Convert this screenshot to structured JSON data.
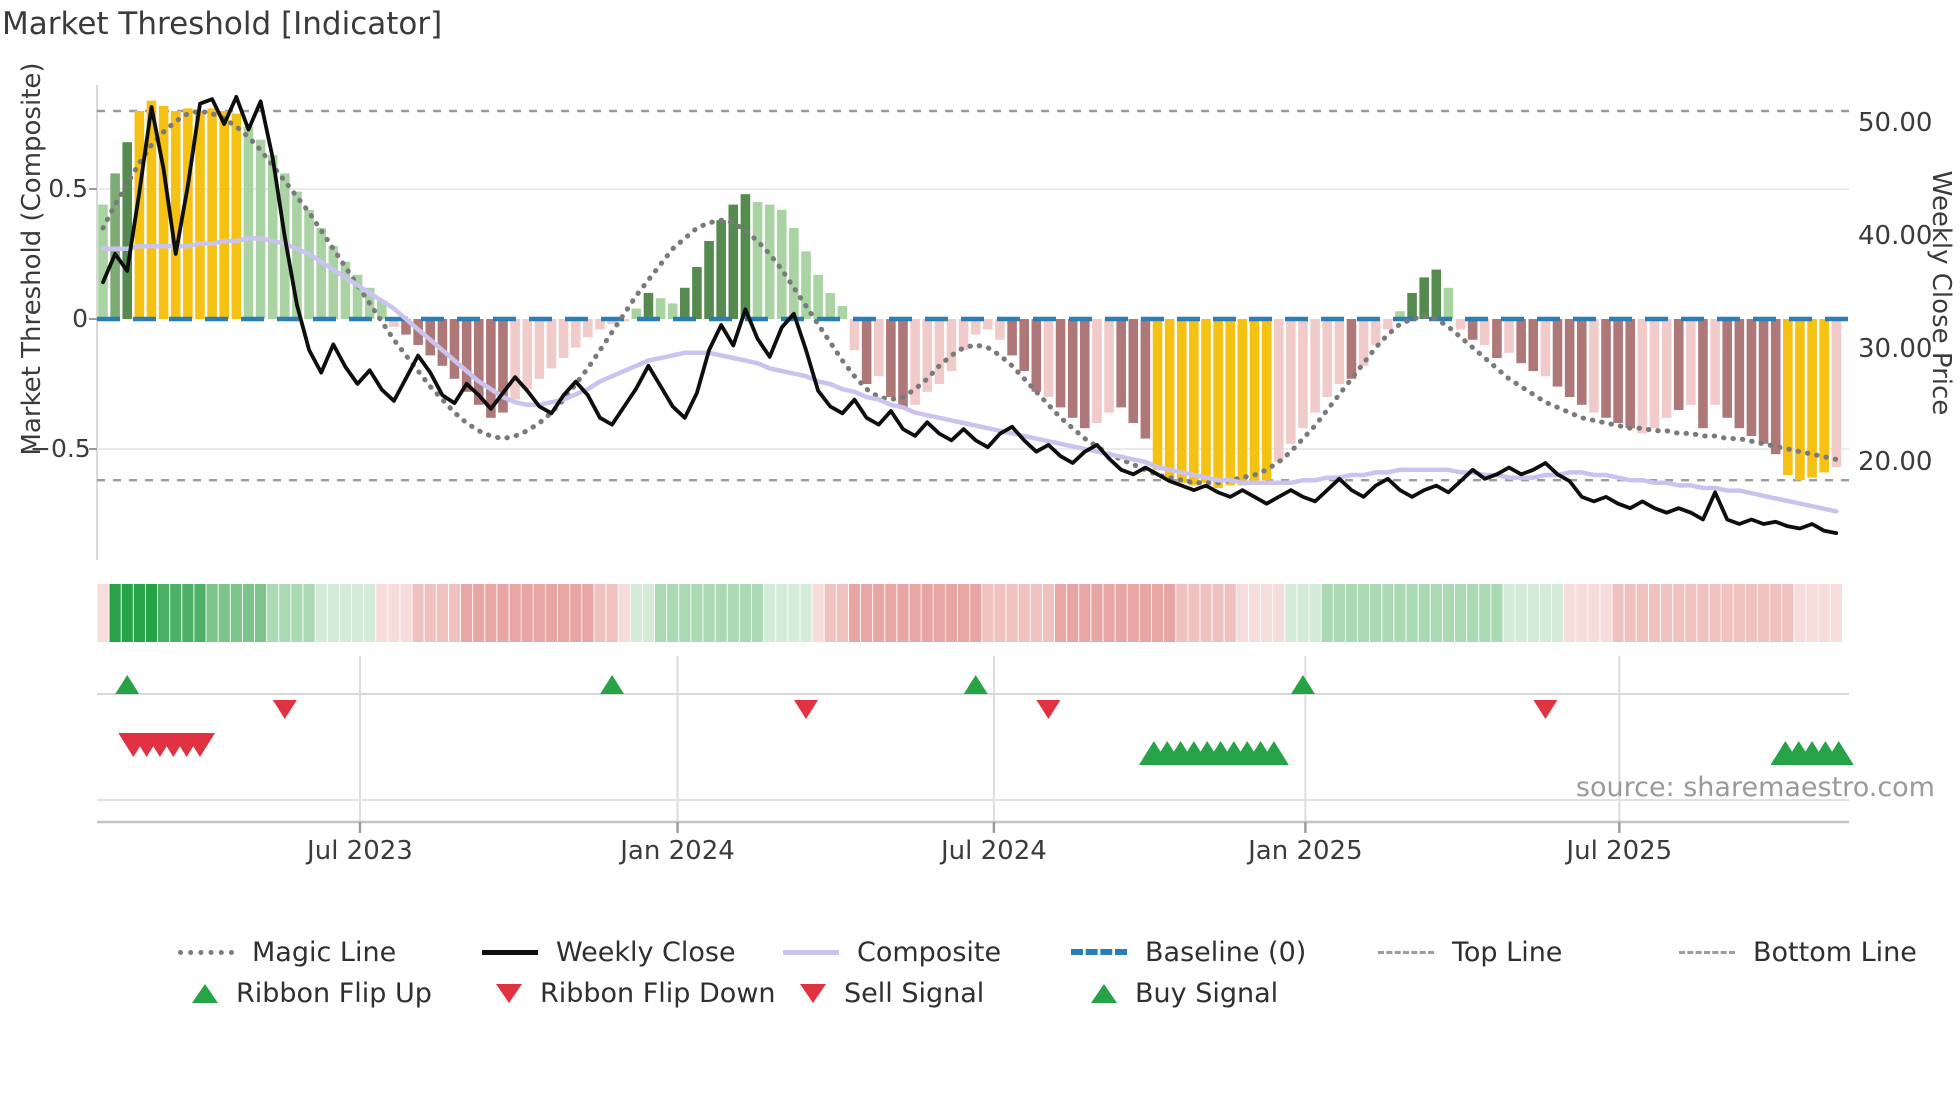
{
  "title": "Market Threshold [Indicator]",
  "source": "source: sharemaestro.com",
  "axes": {
    "left_label": "Market Threshold (Composite)",
    "right_label": "Weekly Close Price",
    "y_left": [
      {
        "label": "0.5",
        "value": 0.5
      },
      {
        "label": "0",
        "value": 0
      },
      {
        "label": "−0.5",
        "value": -0.5
      }
    ],
    "y_right": [
      {
        "label": "50.00",
        "value": 50
      },
      {
        "label": "40.00",
        "value": 40
      },
      {
        "label": "30.00",
        "value": 30
      },
      {
        "label": "20.00",
        "value": 20
      }
    ],
    "x_ticks": [
      {
        "label": "Jul 2023",
        "i": 21.2
      },
      {
        "label": "Jan 2024",
        "i": 47.4
      },
      {
        "label": "Jul 2024",
        "i": 73.5
      },
      {
        "label": "Jan 2025",
        "i": 99.2
      },
      {
        "label": "Jul 2025",
        "i": 125.1
      }
    ]
  },
  "legend": {
    "row1": [
      {
        "label": "Magic Line",
        "swatch": "dotted-gray-line"
      },
      {
        "label": "Weekly Close",
        "swatch": "solid-black-line"
      },
      {
        "label": "Composite",
        "swatch": "solid-lavender-line"
      },
      {
        "label": "Baseline (0)",
        "swatch": "dashed-blue-line"
      },
      {
        "label": "Top Line",
        "swatch": "dashed-gray-line"
      },
      {
        "label": "Bottom Line",
        "swatch": "dashed-gray-line"
      }
    ],
    "row2": [
      {
        "label": "Ribbon Flip Up",
        "swatch": "green-up-triangle"
      },
      {
        "label": "Ribbon Flip Down",
        "swatch": "red-down-triangle"
      },
      {
        "label": "Sell Signal",
        "swatch": "red-down-triangle"
      },
      {
        "label": "Buy Signal",
        "swatch": "green-up-triangle"
      }
    ]
  },
  "colors": {
    "gold_bar": "#f5c113",
    "dark_green_bar": "#558b4e",
    "mid_green_bar": "#7cab74",
    "light_green_bar": "#a9d3a3",
    "light_pink_bar": "#f1cbca",
    "dark_pink_bar": "#ae7878",
    "baseline": "#2a7db5",
    "magic_line": "#7a7a7a",
    "composite_line": "#cbc3ef",
    "weekly_close_line": "#0e0e0e",
    "top_bottom_line": "#9b9b9b",
    "buy_triangle": "#27a347",
    "sell_triangle": "#e13241",
    "ribbon_g5": "#27a347",
    "ribbon_g4": "#4cb166",
    "ribbon_g3": "#7cc48b",
    "ribbon_g2": "#abd9b3",
    "ribbon_g1": "#d4ecd7",
    "ribbon_p1": "#f6dcdb",
    "ribbon_p2": "#efc2c0",
    "ribbon_p3": "#e7a6a4"
  },
  "chart_data": {
    "type": "bar",
    "x_unit": "weekly (Feb 2023 - Nov 2025)",
    "title": "Market Threshold [Indicator]",
    "xlabel": "",
    "ylabel_left": "Market Threshold (Composite)",
    "ylabel_right": "Weekly Close Price",
    "ylim_left": [
      -0.9,
      0.92
    ],
    "ylim_right": [
      12,
      53
    ],
    "baseline": 0,
    "top_line": 0.8,
    "bottom_line": -0.62,
    "legend_position": "bottom",
    "grid": "horizontal at 0.5 and -0.5",
    "bars": {
      "values": [
        0.44,
        0.56,
        0.68,
        0.8,
        0.84,
        0.82,
        0.8,
        0.81,
        0.8,
        0.81,
        0.8,
        0.79,
        0.74,
        0.69,
        0.63,
        0.56,
        0.49,
        0.42,
        0.35,
        0.28,
        0.22,
        0.17,
        0.12,
        0.07,
        -0.03,
        -0.06,
        -0.1,
        -0.14,
        -0.18,
        -0.23,
        -0.28,
        -0.33,
        -0.38,
        -0.36,
        -0.31,
        -0.27,
        -0.23,
        -0.19,
        -0.15,
        -0.11,
        -0.07,
        -0.04,
        -0.02,
        -0.01,
        0.04,
        0.1,
        0.08,
        0.06,
        0.12,
        0.2,
        0.3,
        0.38,
        0.44,
        0.48,
        0.45,
        0.44,
        0.42,
        0.35,
        0.26,
        0.17,
        0.1,
        0.05,
        -0.12,
        -0.25,
        -0.22,
        -0.3,
        -0.34,
        -0.33,
        -0.28,
        -0.25,
        -0.2,
        -0.12,
        -0.06,
        -0.04,
        -0.08,
        -0.14,
        -0.2,
        -0.28,
        -0.3,
        -0.34,
        -0.38,
        -0.42,
        -0.4,
        -0.36,
        -0.34,
        -0.4,
        -0.46,
        -0.58,
        -0.61,
        -0.63,
        -0.64,
        -0.63,
        -0.65,
        -0.64,
        -0.64,
        -0.63,
        -0.62,
        -0.55,
        -0.48,
        -0.42,
        -0.36,
        -0.3,
        -0.25,
        -0.23,
        -0.18,
        -0.1,
        -0.04,
        0.03,
        0.1,
        0.16,
        0.19,
        0.12,
        -0.04,
        -0.08,
        -0.1,
        -0.15,
        -0.13,
        -0.17,
        -0.2,
        -0.22,
        -0.26,
        -0.3,
        -0.33,
        -0.36,
        -0.38,
        -0.4,
        -0.42,
        -0.44,
        -0.42,
        -0.38,
        -0.35,
        -0.33,
        -0.42,
        -0.33,
        -0.38,
        -0.42,
        -0.45,
        -0.48,
        -0.52,
        -0.6,
        -0.62,
        -0.61,
        -0.59,
        -0.57
      ],
      "colors": [
        "lg",
        "mg",
        "dg",
        "y",
        "y",
        "y",
        "y",
        "y",
        "y",
        "y",
        "y",
        "y",
        "lg",
        "lg",
        "lg",
        "lg",
        "lg",
        "lg",
        "lg",
        "lg",
        "lg",
        "lg",
        "lg",
        "lg",
        "lp",
        "dp",
        "dp",
        "dp",
        "dp",
        "dp",
        "dp",
        "dp",
        "dp",
        "dp",
        "lp",
        "lp",
        "lp",
        "lp",
        "lp",
        "lp",
        "lp",
        "lp",
        "lp",
        "lp",
        "lg",
        "dg",
        "lg",
        "lg",
        "dg",
        "dg",
        "dg",
        "dg",
        "dg",
        "dg",
        "lg",
        "lg",
        "lg",
        "lg",
        "lg",
        "lg",
        "lg",
        "lg",
        "lp",
        "dp",
        "lp",
        "dp",
        "dp",
        "lp",
        "lp",
        "lp",
        "lp",
        "lp",
        "lp",
        "lp",
        "lp",
        "dp",
        "dp",
        "dp",
        "lp",
        "dp",
        "dp",
        "dp",
        "lp",
        "lp",
        "dp",
        "dp",
        "dp",
        "y",
        "y",
        "y",
        "y",
        "y",
        "y",
        "y",
        "y",
        "y",
        "y",
        "lp",
        "lp",
        "lp",
        "lp",
        "lp",
        "lp",
        "dp",
        "lp",
        "lp",
        "lp",
        "lg",
        "dg",
        "dg",
        "dg",
        "lg",
        "lp",
        "dp",
        "lp",
        "dp",
        "lp",
        "dp",
        "dp",
        "lp",
        "dp",
        "dp",
        "dp",
        "lp",
        "dp",
        "dp",
        "dp",
        "lp",
        "lp",
        "lp",
        "dp",
        "lp",
        "dp",
        "lp",
        "dp",
        "dp",
        "dp",
        "dp",
        "dp",
        "y",
        "y",
        "y",
        "y",
        "lp"
      ]
    },
    "series": [
      {
        "name": "Weekly Close",
        "axis": "right",
        "values": [
          36.0,
          38.5,
          37.0,
          44.0,
          51.5,
          46.0,
          38.5,
          44.5,
          51.8,
          52.2,
          50.0,
          52.4,
          49.5,
          52.0,
          47.0,
          40.0,
          34.0,
          30.0,
          28.0,
          30.5,
          28.5,
          27.0,
          28.2,
          26.5,
          25.5,
          27.5,
          29.5,
          28.0,
          26.0,
          25.3,
          27.0,
          26.0,
          24.8,
          26.2,
          27.6,
          26.4,
          25.0,
          24.4,
          26.0,
          27.2,
          26.0,
          24.0,
          23.4,
          25.0,
          26.6,
          28.6,
          26.8,
          25.0,
          24.0,
          26.2,
          30.0,
          32.2,
          30.4,
          33.6,
          31.0,
          29.4,
          32.0,
          33.2,
          30.0,
          26.4,
          25.0,
          24.4,
          25.6,
          24.0,
          23.4,
          24.6,
          23.0,
          22.4,
          23.6,
          22.6,
          22.0,
          23.0,
          22.0,
          21.4,
          22.6,
          23.2,
          22.0,
          21.0,
          21.6,
          20.6,
          20.0,
          21.0,
          21.6,
          20.4,
          19.4,
          19.0,
          19.6,
          19.0,
          18.4,
          18.0,
          17.6,
          18.0,
          17.4,
          17.0,
          17.6,
          17.0,
          16.4,
          17.0,
          17.6,
          17.0,
          16.6,
          17.6,
          18.6,
          17.6,
          17.0,
          18.0,
          18.6,
          17.6,
          17.0,
          17.6,
          18.0,
          17.4,
          18.4,
          19.4,
          18.6,
          19.0,
          19.6,
          19.0,
          19.4,
          20.0,
          19.0,
          18.4,
          17.0,
          16.6,
          17.0,
          16.4,
          16.0,
          16.6,
          16.0,
          15.6,
          16.0,
          15.6,
          15.0,
          17.4,
          15.0,
          14.6,
          15.0,
          14.6,
          14.8,
          14.4,
          14.2,
          14.6,
          14.0,
          13.8
        ]
      },
      {
        "name": "Magic Line",
        "axis": "left",
        "values": [
          0.35,
          0.44,
          0.52,
          0.6,
          0.67,
          0.72,
          0.76,
          0.79,
          0.8,
          0.79,
          0.77,
          0.74,
          0.7,
          0.65,
          0.59,
          0.53,
          0.47,
          0.41,
          0.34,
          0.27,
          0.2,
          0.13,
          0.06,
          -0.01,
          -0.08,
          -0.14,
          -0.2,
          -0.26,
          -0.31,
          -0.36,
          -0.4,
          -0.43,
          -0.45,
          -0.46,
          -0.45,
          -0.43,
          -0.4,
          -0.36,
          -0.31,
          -0.25,
          -0.19,
          -0.12,
          -0.05,
          0.02,
          0.09,
          0.15,
          0.21,
          0.27,
          0.31,
          0.35,
          0.37,
          0.38,
          0.37,
          0.34,
          0.3,
          0.25,
          0.19,
          0.12,
          0.05,
          -0.02,
          -0.09,
          -0.16,
          -0.22,
          -0.27,
          -0.3,
          -0.31,
          -0.3,
          -0.27,
          -0.23,
          -0.18,
          -0.14,
          -0.11,
          -0.1,
          -0.11,
          -0.14,
          -0.18,
          -0.23,
          -0.28,
          -0.33,
          -0.38,
          -0.42,
          -0.46,
          -0.49,
          -0.52,
          -0.54,
          -0.56,
          -0.58,
          -0.6,
          -0.61,
          -0.62,
          -0.63,
          -0.63,
          -0.63,
          -0.62,
          -0.61,
          -0.6,
          -0.58,
          -0.55,
          -0.51,
          -0.46,
          -0.41,
          -0.35,
          -0.29,
          -0.23,
          -0.17,
          -0.11,
          -0.06,
          -0.02,
          0.0,
          0.01,
          0.0,
          -0.03,
          -0.07,
          -0.11,
          -0.15,
          -0.19,
          -0.23,
          -0.26,
          -0.29,
          -0.32,
          -0.34,
          -0.36,
          -0.38,
          -0.39,
          -0.4,
          -0.41,
          -0.42,
          -0.42,
          -0.43,
          -0.43,
          -0.44,
          -0.44,
          -0.45,
          -0.45,
          -0.46,
          -0.46,
          -0.47,
          -0.48,
          -0.49,
          -0.5,
          -0.51,
          -0.52,
          -0.53,
          -0.54
        ]
      },
      {
        "name": "Composite",
        "axis": "left",
        "values": [
          0.27,
          0.27,
          0.27,
          0.28,
          0.28,
          0.28,
          0.28,
          0.28,
          0.29,
          0.29,
          0.3,
          0.3,
          0.31,
          0.31,
          0.3,
          0.29,
          0.27,
          0.25,
          0.22,
          0.19,
          0.16,
          0.13,
          0.1,
          0.07,
          0.04,
          0.0,
          -0.04,
          -0.08,
          -0.12,
          -0.16,
          -0.2,
          -0.24,
          -0.27,
          -0.3,
          -0.32,
          -0.33,
          -0.33,
          -0.32,
          -0.31,
          -0.29,
          -0.27,
          -0.24,
          -0.22,
          -0.2,
          -0.18,
          -0.16,
          -0.15,
          -0.14,
          -0.13,
          -0.13,
          -0.13,
          -0.14,
          -0.15,
          -0.16,
          -0.17,
          -0.19,
          -0.2,
          -0.21,
          -0.22,
          -0.24,
          -0.25,
          -0.27,
          -0.28,
          -0.3,
          -0.31,
          -0.33,
          -0.34,
          -0.36,
          -0.37,
          -0.38,
          -0.39,
          -0.4,
          -0.41,
          -0.42,
          -0.43,
          -0.44,
          -0.45,
          -0.46,
          -0.47,
          -0.48,
          -0.49,
          -0.5,
          -0.51,
          -0.52,
          -0.53,
          -0.54,
          -0.55,
          -0.57,
          -0.58,
          -0.59,
          -0.6,
          -0.61,
          -0.62,
          -0.62,
          -0.63,
          -0.63,
          -0.63,
          -0.63,
          -0.63,
          -0.62,
          -0.62,
          -0.61,
          -0.61,
          -0.6,
          -0.6,
          -0.59,
          -0.59,
          -0.58,
          -0.58,
          -0.58,
          -0.58,
          -0.58,
          -0.59,
          -0.59,
          -0.6,
          -0.6,
          -0.61,
          -0.61,
          -0.61,
          -0.6,
          -0.6,
          -0.59,
          -0.59,
          -0.6,
          -0.6,
          -0.61,
          -0.62,
          -0.62,
          -0.63,
          -0.63,
          -0.64,
          -0.64,
          -0.65,
          -0.65,
          -0.66,
          -0.66,
          -0.67,
          -0.68,
          -0.69,
          -0.7,
          -0.71,
          -0.72,
          -0.73,
          -0.74
        ]
      }
    ],
    "ribbon": [
      "p1",
      "g5",
      "g5",
      "g5",
      "g5",
      "g4",
      "g4",
      "g4",
      "g4",
      "g3",
      "g3",
      "g3",
      "g3",
      "g3",
      "g2",
      "g2",
      "g2",
      "g2",
      "g1",
      "g1",
      "g1",
      "g1",
      "g1",
      "p1",
      "p1",
      "p1",
      "p2",
      "p2",
      "p2",
      "p2",
      "p3",
      "p3",
      "p3",
      "p3",
      "p3",
      "p3",
      "p3",
      "p3",
      "p3",
      "p3",
      "p3",
      "p2",
      "p2",
      "p1",
      "g1",
      "g1",
      "g2",
      "g2",
      "g2",
      "g2",
      "g2",
      "g2",
      "g2",
      "g2",
      "g2",
      "g1",
      "g1",
      "g1",
      "g1",
      "p1",
      "p2",
      "p2",
      "p3",
      "p3",
      "p3",
      "p3",
      "p3",
      "p3",
      "p3",
      "p3",
      "p3",
      "p3",
      "p3",
      "p2",
      "p2",
      "p2",
      "p2",
      "p2",
      "p2",
      "p3",
      "p3",
      "p3",
      "p3",
      "p3",
      "p3",
      "p3",
      "p3",
      "p3",
      "p3",
      "p2",
      "p2",
      "p2",
      "p2",
      "p2",
      "p1",
      "p1",
      "p1",
      "p1",
      "g1",
      "g1",
      "g1",
      "g2",
      "g2",
      "g2",
      "g2",
      "g2",
      "g2",
      "g2",
      "g2",
      "g2",
      "g2",
      "g2",
      "g2",
      "g2",
      "g2",
      "g2",
      "g1",
      "g1",
      "g1",
      "g1",
      "g1",
      "p1",
      "p1",
      "p1",
      "p1",
      "p2",
      "p2",
      "p2",
      "p2",
      "p2",
      "p2",
      "p2",
      "p2",
      "p2",
      "p2",
      "p2",
      "p2",
      "p2",
      "p2",
      "p2",
      "p1",
      "p1",
      "p1",
      "p1"
    ],
    "signals": {
      "ribbon_flip_up_i": [
        2,
        42,
        72,
        99
      ],
      "ribbon_flip_down_i": [
        15,
        58,
        78,
        119
      ],
      "sell_i": [
        2.5,
        3.6,
        4.7,
        5.8,
        6.9,
        8.0
      ],
      "buy_i": [
        86.7,
        87.8,
        88.9,
        90.0,
        91.1,
        92.2,
        93.3,
        94.4,
        95.5,
        96.6,
        138.8,
        139.9,
        141.0,
        142.1,
        143.2
      ]
    }
  }
}
